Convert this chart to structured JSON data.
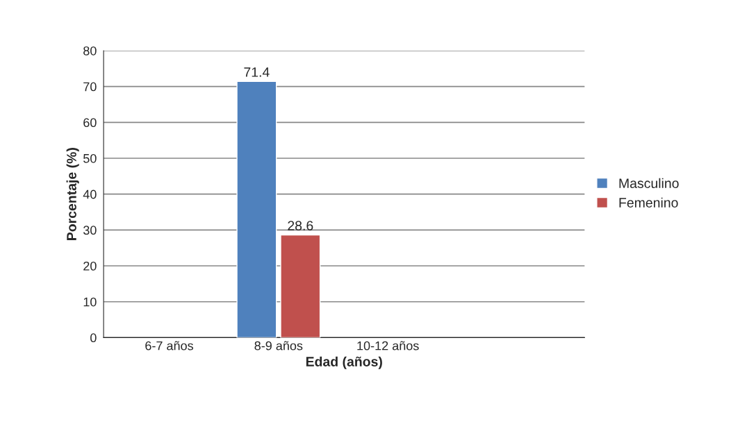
{
  "chart_data": {
    "type": "bar",
    "xlabel": "Edad (años)",
    "ylabel": "Porcentaje (%)",
    "categories": [
      "6-7 años",
      "8-9 años",
      "10-12 años"
    ],
    "series": [
      {
        "name": "Masculino",
        "color": "#4f81bd",
        "values": [
          null,
          71.4,
          null
        ],
        "value_labels": [
          null,
          "71.4",
          null
        ]
      },
      {
        "name": "Femenino",
        "color": "#c0504d",
        "values": [
          null,
          28.6,
          null
        ],
        "value_labels": [
          null,
          "28.6",
          null
        ]
      }
    ],
    "ylim": [
      0,
      80
    ],
    "yticks": [
      0,
      10,
      20,
      30,
      40,
      50,
      60,
      70,
      80
    ],
    "grid": "y",
    "legend": "right"
  }
}
